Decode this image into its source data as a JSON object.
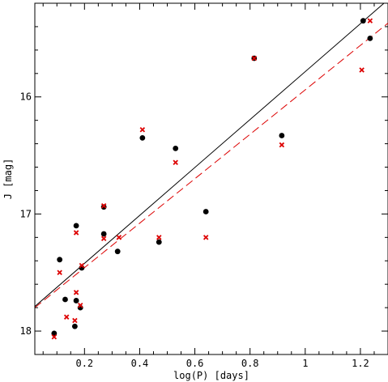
{
  "chart_data": {
    "type": "scatter",
    "title": "",
    "xlabel": "log(P) [days]",
    "ylabel": "J [mag]",
    "xlim": [
      0.02,
      1.3
    ],
    "ylim": [
      18.2,
      15.2
    ],
    "y_inverted": true,
    "grid": false,
    "legend": "none",
    "x_ticks": [
      {
        "value": 0.2,
        "label": "0.2"
      },
      {
        "value": 0.4,
        "label": "0.4"
      },
      {
        "value": 0.6,
        "label": "0.6"
      },
      {
        "value": 0.8,
        "label": "0.8"
      },
      {
        "value": 1.0,
        "label": "1"
      },
      {
        "value": 1.2,
        "label": "1.2"
      }
    ],
    "y_ticks": [
      {
        "value": 16,
        "label": "16"
      },
      {
        "value": 17,
        "label": "17"
      },
      {
        "value": 18,
        "label": "18"
      }
    ],
    "series": [
      {
        "marker": "circle",
        "color": "#000000",
        "points": [
          {
            "x": 0.09,
            "y": 18.02
          },
          {
            "x": 0.11,
            "y": 17.39
          },
          {
            "x": 0.13,
            "y": 17.73
          },
          {
            "x": 0.165,
            "y": 17.96
          },
          {
            "x": 0.17,
            "y": 17.74
          },
          {
            "x": 0.17,
            "y": 17.1
          },
          {
            "x": 0.185,
            "y": 17.8
          },
          {
            "x": 0.19,
            "y": 17.46
          },
          {
            "x": 0.27,
            "y": 17.17
          },
          {
            "x": 0.27,
            "y": 16.94
          },
          {
            "x": 0.32,
            "y": 17.32
          },
          {
            "x": 0.41,
            "y": 16.35
          },
          {
            "x": 0.47,
            "y": 17.24
          },
          {
            "x": 0.53,
            "y": 16.44
          },
          {
            "x": 0.64,
            "y": 16.98
          },
          {
            "x": 0.815,
            "y": 15.67
          },
          {
            "x": 0.915,
            "y": 16.33
          },
          {
            "x": 1.21,
            "y": 15.35
          },
          {
            "x": 1.235,
            "y": 15.5
          }
        ]
      },
      {
        "marker": "cross",
        "color": "#dd0000",
        "points": [
          {
            "x": 0.09,
            "y": 18.05
          },
          {
            "x": 0.11,
            "y": 17.5
          },
          {
            "x": 0.135,
            "y": 17.88
          },
          {
            "x": 0.165,
            "y": 17.91
          },
          {
            "x": 0.17,
            "y": 17.67
          },
          {
            "x": 0.17,
            "y": 17.16
          },
          {
            "x": 0.185,
            "y": 17.78
          },
          {
            "x": 0.19,
            "y": 17.44
          },
          {
            "x": 0.27,
            "y": 17.21
          },
          {
            "x": 0.27,
            "y": 16.93
          },
          {
            "x": 0.325,
            "y": 17.2
          },
          {
            "x": 0.41,
            "y": 16.28
          },
          {
            "x": 0.47,
            "y": 17.2
          },
          {
            "x": 0.53,
            "y": 16.56
          },
          {
            "x": 0.64,
            "y": 17.2
          },
          {
            "x": 0.815,
            "y": 15.67
          },
          {
            "x": 0.915,
            "y": 16.41
          },
          {
            "x": 1.205,
            "y": 15.77
          },
          {
            "x": 1.235,
            "y": 15.35
          }
        ]
      }
    ],
    "lines": [
      {
        "style": "solid",
        "color": "#000000",
        "from": {
          "x": 0.02,
          "y": 17.79
        },
        "to": {
          "x": 1.3,
          "y": 15.17
        }
      },
      {
        "style": "dashed",
        "color": "#dd0000",
        "from": {
          "x": 0.02,
          "y": 17.8
        },
        "to": {
          "x": 1.3,
          "y": 15.37
        }
      }
    ]
  }
}
